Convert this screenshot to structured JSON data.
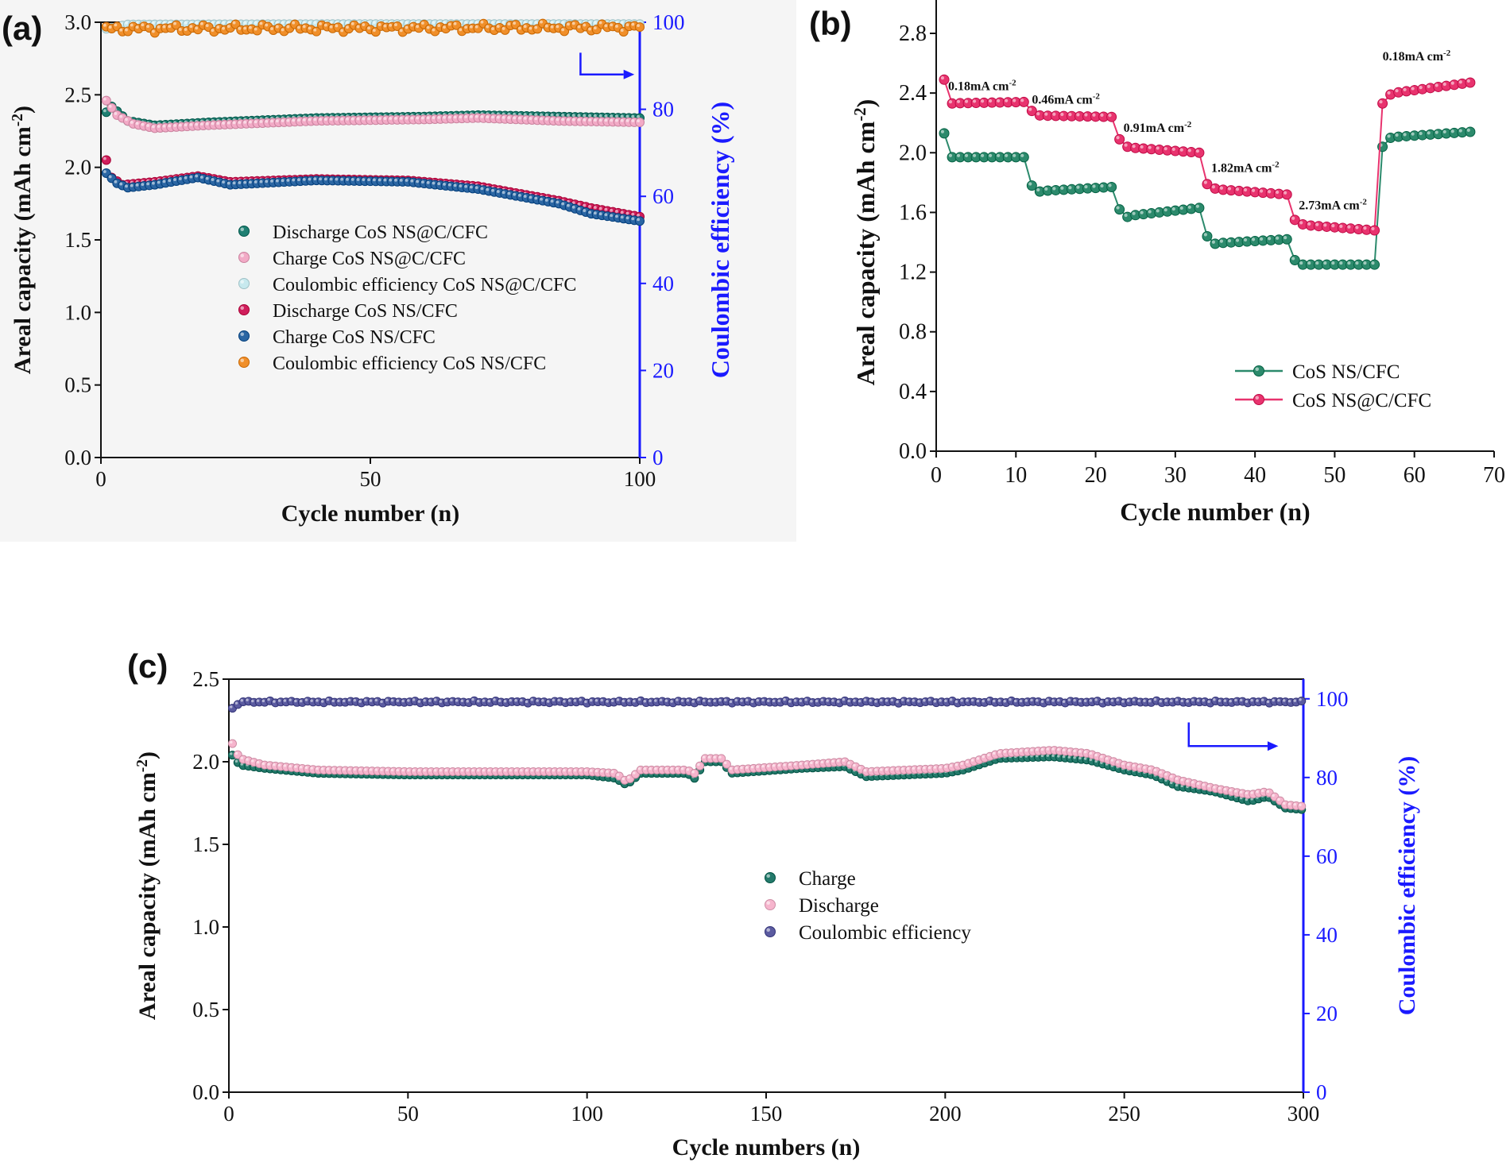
{
  "colors": {
    "teal": "#1f7f72",
    "pink": "#f2aac6",
    "lightblue": "#c7e9ee",
    "crimson": "#d01e5c",
    "blue_dark": "#2b66a3",
    "orange": "#f08f2a",
    "green_b": "#2c8a6c",
    "red_b": "#e8336e",
    "teal_c": "#247a6b",
    "pink_c": "#f6b5cd",
    "navy_c": "#5b5ba0",
    "axis_blue": "#1a1aff"
  },
  "chart_data": [
    {
      "panel": "(a)",
      "type": "scatter",
      "xlabel": "Cycle number (n)",
      "ylabel": "Areal capacity (mAh cm",
      "ylabel_sup": "-2",
      "ylabel_end": ")",
      "y2label": "Coulombic efficiency (%)",
      "xlim": [
        0,
        100
      ],
      "ylim": [
        0,
        3.0
      ],
      "y2lim": [
        0,
        100
      ],
      "xticks": [
        "0",
        "50",
        "100"
      ],
      "yticks": [
        "0.0",
        "0.5",
        "1.0",
        "1.5",
        "2.0",
        "2.5",
        "3.0"
      ],
      "y2ticks": [
        "0",
        "20",
        "40",
        "60",
        "80",
        "100"
      ],
      "series": [
        {
          "name": "Discharge CoS NS@C/CFC",
          "color_key": "teal",
          "axis": "left",
          "anchors": [
            [
              1,
              2.38
            ],
            [
              2,
              2.42
            ],
            [
              5,
              2.32
            ],
            [
              10,
              2.29
            ],
            [
              20,
              2.31
            ],
            [
              40,
              2.34
            ],
            [
              60,
              2.35
            ],
            [
              70,
              2.36
            ],
            [
              85,
              2.35
            ],
            [
              100,
              2.34
            ]
          ]
        },
        {
          "name": "Charge      CoS NS@C/CFC",
          "color_key": "pink",
          "axis": "left",
          "anchors": [
            [
              1,
              2.46
            ],
            [
              3,
              2.36
            ],
            [
              6,
              2.3
            ],
            [
              10,
              2.27
            ],
            [
              20,
              2.29
            ],
            [
              40,
              2.32
            ],
            [
              60,
              2.33
            ],
            [
              70,
              2.34
            ],
            [
              85,
              2.32
            ],
            [
              100,
              2.31
            ]
          ]
        },
        {
          "name": "Coulombic efficiency CoS NS@C/CFC",
          "color_key": "lightblue",
          "axis": "right",
          "anchors": [
            [
              1,
              98.5
            ],
            [
              5,
              99.5
            ],
            [
              50,
              99.6
            ],
            [
              100,
              99.6
            ]
          ]
        },
        {
          "name": "Discharge CoS NS/CFC",
          "color_key": "crimson",
          "axis": "left",
          "anchors": [
            [
              1,
              2.05
            ],
            [
              2,
              1.93
            ],
            [
              4,
              1.88
            ],
            [
              10,
              1.9
            ],
            [
              18,
              1.94
            ],
            [
              24,
              1.9
            ],
            [
              40,
              1.92
            ],
            [
              57,
              1.91
            ],
            [
              70,
              1.87
            ],
            [
              85,
              1.77
            ],
            [
              91,
              1.72
            ],
            [
              100,
              1.66
            ]
          ]
        },
        {
          "name": "Charge      CoS NS/CFC",
          "color_key": "blue_dark",
          "axis": "left",
          "anchors": [
            [
              1,
              1.96
            ],
            [
              3,
              1.89
            ],
            [
              5,
              1.86
            ],
            [
              10,
              1.88
            ],
            [
              18,
              1.93
            ],
            [
              24,
              1.88
            ],
            [
              40,
              1.91
            ],
            [
              57,
              1.9
            ],
            [
              70,
              1.85
            ],
            [
              85,
              1.75
            ],
            [
              91,
              1.68
            ],
            [
              100,
              1.63
            ]
          ]
        },
        {
          "name": "Coulombic efficiency CoS NS/CFC",
          "color_key": "orange",
          "axis": "right",
          "anchors": [
            [
              1,
              98.5
            ],
            [
              100,
              98.8
            ]
          ],
          "jitter": 1.0
        }
      ]
    },
    {
      "panel": "(b)",
      "type": "line",
      "xlabel": "Cycle number (n)",
      "ylabel": "Areal capacity (mAh cm",
      "ylabel_sup": "-2",
      "ylabel_end": ")",
      "xlim": [
        0,
        70
      ],
      "ylim": [
        0,
        2.8
      ],
      "xticks": [
        "0",
        "10",
        "20",
        "30",
        "40",
        "50",
        "60",
        "70"
      ],
      "yticks": [
        "0.0",
        "0.4",
        "0.8",
        "1.2",
        "1.6",
        "2.0",
        "2.4",
        "2.8"
      ],
      "series": [
        {
          "name": "CoS NS/CFC",
          "color_key": "green_b",
          "segments": [
            [
              1,
              11,
              1.97,
              1.97,
              2.13
            ],
            [
              12,
              22,
              1.74,
              1.77,
              1.78
            ],
            [
              23,
              33,
              1.57,
              1.63,
              1.62
            ],
            [
              34,
              44,
              1.39,
              1.42,
              1.44
            ],
            [
              45,
              55,
              1.25,
              1.25,
              1.28
            ],
            [
              56,
              67,
              2.1,
              2.14,
              2.04
            ]
          ]
        },
        {
          "name": "CoS NS@C/CFC",
          "color_key": "red_b",
          "segments": [
            [
              1,
              11,
              2.33,
              2.34,
              2.49
            ],
            [
              12,
              22,
              2.25,
              2.24,
              2.28
            ],
            [
              23,
              33,
              2.04,
              2.0,
              2.09
            ],
            [
              34,
              44,
              1.76,
              1.72,
              1.79
            ],
            [
              45,
              55,
              1.52,
              1.48,
              1.55
            ],
            [
              56,
              67,
              2.39,
              2.47,
              2.33
            ]
          ]
        }
      ],
      "annotations": [
        {
          "text": "0.18mA cm",
          "sup": "-2",
          "x": 1.5,
          "y": 2.42
        },
        {
          "text": "0.46mA cm",
          "sup": "-2",
          "x": 12,
          "y": 2.33
        },
        {
          "text": "0.91mA cm",
          "sup": "-2",
          "x": 23.5,
          "y": 2.14
        },
        {
          "text": "1.82mA cm",
          "sup": "-2",
          "x": 34.5,
          "y": 1.87
        },
        {
          "text": "2.73mA cm",
          "sup": "-2",
          "x": 45.5,
          "y": 1.62
        },
        {
          "text": "0.18mA cm",
          "sup": "-2",
          "x": 56,
          "y": 2.62
        }
      ]
    },
    {
      "panel": "(c)",
      "type": "scatter",
      "xlabel": "Cycle numbers (n)",
      "ylabel": "Areal capacity (mAh cm",
      "ylabel_sup": "-2",
      "ylabel_end": ")",
      "y2label": "Coulombic efficiency (%)",
      "xlim": [
        0,
        300
      ],
      "ylim": [
        0,
        2.5
      ],
      "y2lim": [
        0,
        105
      ],
      "xticks": [
        "0",
        "50",
        "100",
        "150",
        "200",
        "250",
        "300"
      ],
      "yticks": [
        "0.0",
        "0.5",
        "1.0",
        "1.5",
        "2.0",
        "2.5"
      ],
      "y2ticks": [
        "0",
        "20",
        "40",
        "60",
        "80",
        "100"
      ],
      "series": [
        {
          "name": "Charge",
          "color_key": "teal_c",
          "axis": "left",
          "anchors": [
            [
              1,
              2.04
            ],
            [
              3,
              1.98
            ],
            [
              10,
              1.96
            ],
            [
              25,
              1.93
            ],
            [
              50,
              1.92
            ],
            [
              100,
              1.92
            ],
            [
              108,
              1.9
            ],
            [
              111,
              1.86
            ],
            [
              115,
              1.93
            ],
            [
              128,
              1.93
            ],
            [
              130,
              1.9
            ],
            [
              133,
              2.0
            ],
            [
              138,
              2.0
            ],
            [
              140,
              1.93
            ],
            [
              160,
              1.96
            ],
            [
              172,
              1.97
            ],
            [
              178,
              1.91
            ],
            [
              200,
              1.93
            ],
            [
              205,
              1.95
            ],
            [
              215,
              2.02
            ],
            [
              230,
              2.03
            ],
            [
              240,
              2.01
            ],
            [
              250,
              1.95
            ],
            [
              258,
              1.92
            ],
            [
              265,
              1.85
            ],
            [
              275,
              1.82
            ],
            [
              285,
              1.76
            ],
            [
              290,
              1.79
            ],
            [
              295,
              1.72
            ],
            [
              300,
              1.71
            ]
          ]
        },
        {
          "name": "Discharge",
          "color_key": "pink_c",
          "axis": "left",
          "anchors": [
            [
              1,
              2.11
            ],
            [
              3,
              2.02
            ],
            [
              10,
              1.98
            ],
            [
              25,
              1.95
            ],
            [
              50,
              1.94
            ],
            [
              100,
              1.94
            ],
            [
              108,
              1.93
            ],
            [
              111,
              1.88
            ],
            [
              115,
              1.95
            ],
            [
              128,
              1.95
            ],
            [
              130,
              1.93
            ],
            [
              133,
              2.02
            ],
            [
              138,
              2.02
            ],
            [
              140,
              1.95
            ],
            [
              160,
              1.98
            ],
            [
              172,
              2.0
            ],
            [
              178,
              1.94
            ],
            [
              200,
              1.96
            ],
            [
              205,
              1.98
            ],
            [
              215,
              2.05
            ],
            [
              230,
              2.07
            ],
            [
              240,
              2.05
            ],
            [
              250,
              1.98
            ],
            [
              258,
              1.95
            ],
            [
              265,
              1.89
            ],
            [
              275,
              1.84
            ],
            [
              285,
              1.8
            ],
            [
              290,
              1.82
            ],
            [
              295,
              1.74
            ],
            [
              300,
              1.73
            ]
          ]
        },
        {
          "name": "Coulombic efficiency",
          "color_key": "navy_c",
          "axis": "right",
          "anchors": [
            [
              1,
              97.5
            ],
            [
              3,
              99.2
            ],
            [
              300,
              99.2
            ]
          ],
          "jitter": 0.3
        }
      ]
    }
  ]
}
